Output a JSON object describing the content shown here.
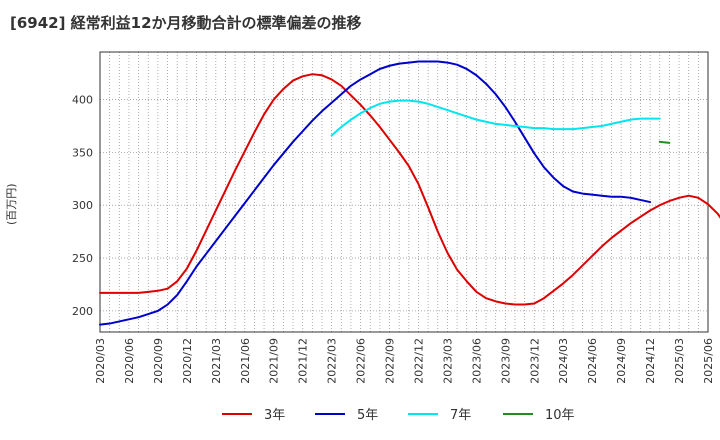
{
  "title": "[6942]  経常利益12か月移動合計の標準偏差の推移",
  "y_unit": "(百万円)",
  "colors": {
    "3y": "#dd0000",
    "5y": "#0000cc",
    "7y": "#00e5ee",
    "10y": "#228b22",
    "grid": "#999999",
    "frame": "#333333",
    "plot_bg": "#ffffff"
  },
  "chart_data": {
    "type": "line",
    "title": "[6942]  経常利益12か月移動合計の標準偏差の推移",
    "ylabel": "(百万円)",
    "xlabel": "",
    "ylim": [
      180,
      445
    ],
    "yticks": [
      200,
      250,
      300,
      350,
      400
    ],
    "xticks": [
      "2020/03",
      "2020/06",
      "2020/09",
      "2020/12",
      "2021/03",
      "2021/06",
      "2021/09",
      "2021/12",
      "2022/03",
      "2022/06",
      "2022/09",
      "2022/12",
      "2023/03",
      "2023/06",
      "2023/09",
      "2023/12",
      "2024/03",
      "2024/06",
      "2024/09",
      "2024/12",
      "2025/03",
      "2025/06"
    ],
    "grid": true,
    "legend_position": "bottom",
    "series": [
      {
        "name": "3年",
        "color": "#dd0000",
        "start": "2020/03",
        "values": [
          217,
          217,
          217,
          217,
          217,
          218,
          219,
          221,
          228,
          240,
          257,
          276,
          295,
          314,
          333,
          351,
          369,
          386,
          400,
          410,
          418,
          422,
          424,
          423,
          419,
          413,
          404,
          395,
          385,
          374,
          362,
          350,
          337,
          320,
          298,
          275,
          255,
          239,
          228,
          218,
          212,
          209,
          207,
          206,
          206,
          207,
          212,
          219,
          226,
          234,
          243,
          252,
          261,
          269,
          276,
          283,
          289,
          295,
          300,
          304,
          307,
          309,
          307,
          301,
          292,
          279
        ]
      },
      {
        "name": "5年",
        "color": "#0000cc",
        "start": "2020/03",
        "values": [
          187,
          188,
          190,
          192,
          194,
          197,
          200,
          206,
          215,
          228,
          242,
          254,
          266,
          278,
          290,
          302,
          314,
          326,
          338,
          349,
          360,
          370,
          380,
          389,
          397,
          405,
          413,
          419,
          424,
          429,
          432,
          434,
          435,
          436,
          436,
          436,
          435,
          433,
          429,
          423,
          415,
          405,
          393,
          379,
          364,
          349,
          336,
          326,
          318,
          313,
          311,
          310,
          309,
          308,
          308,
          307,
          305,
          303
        ]
      },
      {
        "name": "7年",
        "color": "#00e5ee",
        "start": "2022/03",
        "values": [
          366,
          374,
          381,
          387,
          392,
          396,
          398,
          399,
          399,
          398,
          396,
          393,
          390,
          387,
          384,
          381,
          379,
          377,
          376,
          375,
          374,
          373,
          373,
          372,
          372,
          372,
          373,
          374,
          375,
          377,
          379,
          381,
          382,
          382,
          382
        ]
      },
      {
        "name": "10年",
        "color": "#228b22",
        "start": "2025/01",
        "values": [
          360,
          359
        ]
      }
    ]
  }
}
